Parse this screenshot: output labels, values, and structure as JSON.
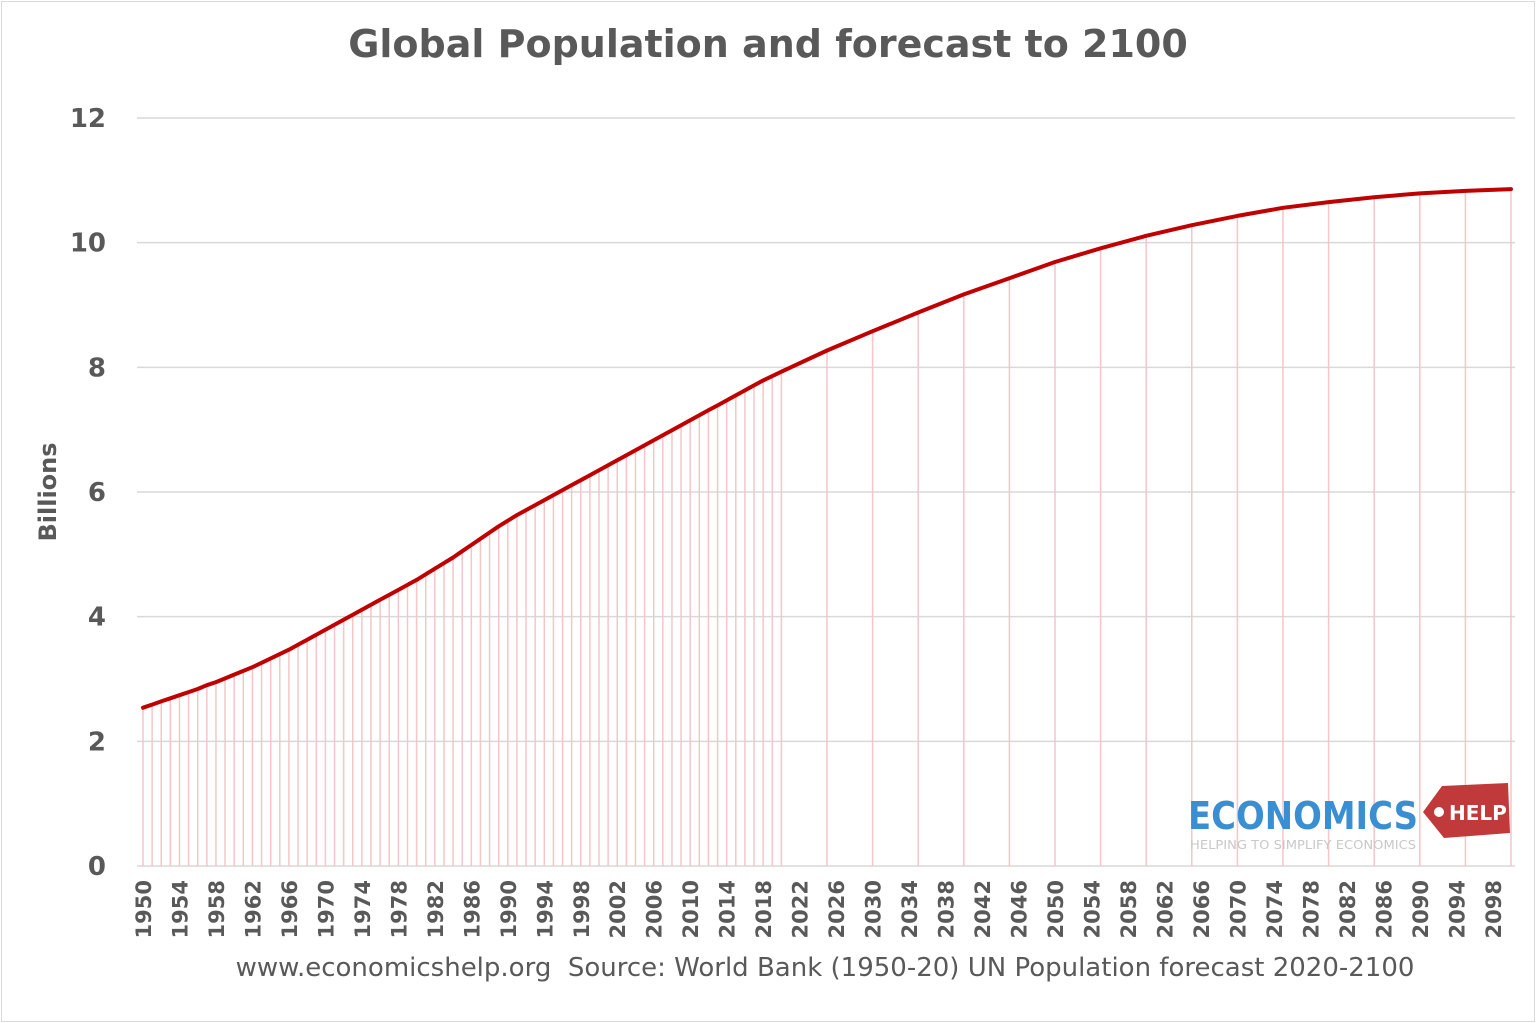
{
  "chart_data": {
    "type": "line",
    "title": "Global Population and forecast to 2100",
    "ylabel": "Billions",
    "xlabel": "",
    "ylim": [
      0,
      12
    ],
    "yticks": [
      0,
      2,
      4,
      6,
      8,
      10,
      12
    ],
    "xlim": [
      1950,
      2100
    ],
    "xtick_labels": [
      "1950",
      "1954",
      "1958",
      "1962",
      "1966",
      "1970",
      "1974",
      "1978",
      "1982",
      "1986",
      "1990",
      "1994",
      "1998",
      "2002",
      "2006",
      "2010",
      "2014",
      "2018",
      "2022",
      "2026",
      "2030",
      "2034",
      "2038",
      "2042",
      "2046",
      "2050",
      "2054",
      "2058",
      "2062",
      "2066",
      "2070",
      "2074",
      "2078",
      "2082",
      "2086",
      "2090",
      "2094",
      "2098"
    ],
    "grid": "horizontal",
    "drop_lines": true,
    "line_color": "#c00000",
    "drop_line_color": "#f4c6c6",
    "x": [
      1950,
      1951,
      1952,
      1953,
      1954,
      1955,
      1956,
      1957,
      1958,
      1959,
      1960,
      1961,
      1962,
      1963,
      1964,
      1965,
      1966,
      1967,
      1968,
      1969,
      1970,
      1971,
      1972,
      1973,
      1974,
      1975,
      1976,
      1977,
      1978,
      1979,
      1980,
      1981,
      1982,
      1983,
      1984,
      1985,
      1986,
      1987,
      1988,
      1989,
      1990,
      1991,
      1992,
      1993,
      1994,
      1995,
      1996,
      1997,
      1998,
      1999,
      2000,
      2001,
      2002,
      2003,
      2004,
      2005,
      2006,
      2007,
      2008,
      2009,
      2010,
      2011,
      2012,
      2013,
      2014,
      2015,
      2016,
      2017,
      2018,
      2019,
      2020,
      2025,
      2030,
      2035,
      2040,
      2045,
      2050,
      2055,
      2060,
      2065,
      2070,
      2075,
      2080,
      2085,
      2090,
      2095,
      2100
    ],
    "values": [
      2.54,
      2.59,
      2.64,
      2.69,
      2.74,
      2.79,
      2.84,
      2.9,
      2.95,
      3.01,
      3.07,
      3.13,
      3.19,
      3.26,
      3.33,
      3.4,
      3.47,
      3.55,
      3.63,
      3.71,
      3.79,
      3.87,
      3.95,
      4.03,
      4.11,
      4.19,
      4.27,
      4.35,
      4.43,
      4.51,
      4.59,
      4.68,
      4.77,
      4.86,
      4.95,
      5.05,
      5.15,
      5.25,
      5.35,
      5.45,
      5.54,
      5.63,
      5.71,
      5.79,
      5.87,
      5.95,
      6.03,
      6.11,
      6.19,
      6.27,
      6.35,
      6.43,
      6.51,
      6.59,
      6.67,
      6.75,
      6.83,
      6.91,
      6.99,
      7.07,
      7.15,
      7.23,
      7.31,
      7.39,
      7.47,
      7.55,
      7.63,
      7.71,
      7.79,
      7.86,
      7.93,
      8.27,
      8.58,
      8.88,
      9.17,
      9.43,
      9.69,
      9.91,
      10.11,
      10.28,
      10.43,
      10.56,
      10.65,
      10.73,
      10.79,
      10.83,
      10.86
    ]
  },
  "footer": "www.economicshelp.org  Source: World Bank (1950-20) UN Population forecast 2020-2100",
  "logo": {
    "word": "ECONOMICS",
    "tag": "HELP",
    "tagline": "HELPING TO SIMPLIFY ECONOMICS"
  }
}
